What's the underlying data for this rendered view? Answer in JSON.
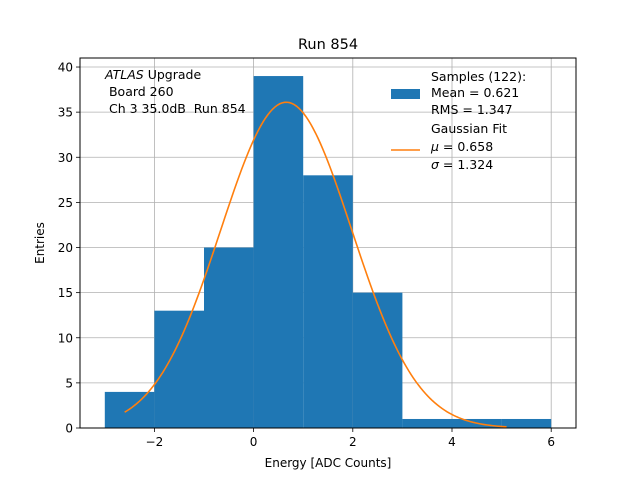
{
  "chart_data": {
    "type": "bar",
    "title": "Run 854",
    "xlabel": "Energy [ADC Counts]",
    "ylabel": "Entries",
    "xlim": [
      -3.5,
      6.5
    ],
    "ylim": [
      0,
      41
    ],
    "grid": true,
    "x_ticks": [
      -2,
      0,
      2,
      4,
      6
    ],
    "x_tick_labels": [
      "−2",
      "0",
      "2",
      "4",
      "6"
    ],
    "y_ticks": [
      0,
      5,
      10,
      15,
      20,
      25,
      30,
      35,
      40
    ],
    "y_tick_labels": [
      "0",
      "5",
      "10",
      "15",
      "20",
      "25",
      "30",
      "35",
      "40"
    ],
    "histogram": {
      "bin_edges": [
        -3,
        -2,
        -1,
        0,
        1,
        2,
        3,
        4,
        5,
        6
      ],
      "counts": [
        4,
        13,
        20,
        39,
        28,
        15,
        1,
        1,
        1
      ],
      "color": "#1f77b4"
    },
    "fit": {
      "type": "gaussian",
      "amplitude": 36.1,
      "mu": 0.658,
      "sigma": 1.324,
      "x_range": [
        -2.6,
        5.1
      ],
      "color": "#ff7f0e"
    },
    "annotation": {
      "line1_italic": "ATLAS",
      "line1_rest": " Upgrade",
      "line2": " Board 260",
      "line3": " Ch 3 35.0dB  Run 854"
    },
    "legend": {
      "placement": "top-right",
      "samples_title": "Samples (122):",
      "samples_mean": "Mean = 0.621",
      "samples_rms": "RMS = 1.347",
      "fit_title": "Gaussian Fit",
      "fit_mu_symbol": "μ",
      "fit_mu_rest": " = 0.658",
      "fit_sigma_symbol": "σ",
      "fit_sigma_rest": " = 1.324"
    }
  }
}
